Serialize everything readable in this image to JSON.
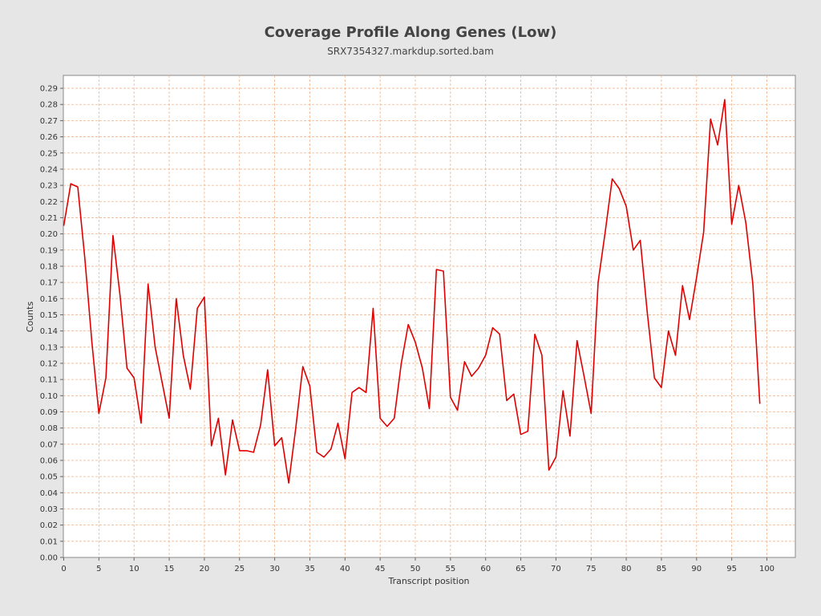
{
  "chart_data": {
    "type": "line",
    "title": "Coverage Profile Along Genes (Low)",
    "subtitle": "SRX7354327.markdup.sorted.bam",
    "xlabel": "Transcript position",
    "ylabel": "Counts",
    "xlim": [
      0,
      104
    ],
    "ylim": [
      0,
      0.298
    ],
    "x_ticks": [
      0,
      5,
      10,
      15,
      20,
      25,
      30,
      35,
      40,
      45,
      50,
      55,
      60,
      65,
      70,
      75,
      80,
      85,
      90,
      95,
      100
    ],
    "y_ticks": [
      "0.00",
      "0.01",
      "0.02",
      "0.03",
      "0.04",
      "0.05",
      "0.06",
      "0.07",
      "0.08",
      "0.09",
      "0.10",
      "0.11",
      "0.12",
      "0.13",
      "0.14",
      "0.15",
      "0.16",
      "0.17",
      "0.18",
      "0.19",
      "0.20",
      "0.21",
      "0.22",
      "0.23",
      "0.24",
      "0.25",
      "0.26",
      "0.27",
      "0.28",
      "0.29"
    ],
    "grid": true,
    "colors": {
      "line": "#e00000",
      "grid": "#f0b48c",
      "plot_bg": "#ffffff",
      "page_bg": "#e6e6e6"
    },
    "series": [
      {
        "x": [
          0,
          1,
          2,
          3,
          4,
          5,
          6,
          7,
          8,
          9,
          10,
          11,
          12,
          13,
          14,
          15,
          16,
          17,
          18,
          19,
          20,
          21,
          22,
          23,
          24,
          25,
          26,
          27,
          28,
          29,
          30,
          31,
          32,
          33,
          34,
          35,
          36,
          37,
          38,
          39,
          40,
          41,
          42,
          43,
          44,
          45,
          46,
          47,
          48,
          49,
          50,
          51,
          52,
          53,
          54,
          55,
          56,
          57,
          58,
          59,
          60,
          61,
          62,
          63,
          64,
          65,
          66,
          67,
          68,
          69,
          70,
          71,
          72,
          73,
          74,
          75,
          76,
          77,
          78,
          79,
          80,
          81,
          82,
          83,
          84,
          85,
          86,
          87,
          88,
          89,
          90,
          91,
          92,
          93,
          94,
          95,
          96,
          97,
          98,
          99
        ],
        "y": [
          0.205,
          0.231,
          0.229,
          0.185,
          0.133,
          0.089,
          0.111,
          0.199,
          0.162,
          0.117,
          0.111,
          0.083,
          0.169,
          0.13,
          0.108,
          0.086,
          0.16,
          0.125,
          0.104,
          0.154,
          0.161,
          0.069,
          0.086,
          0.051,
          0.085,
          0.066,
          0.066,
          0.065,
          0.082,
          0.116,
          0.069,
          0.074,
          0.046,
          0.08,
          0.118,
          0.106,
          0.065,
          0.062,
          0.067,
          0.083,
          0.061,
          0.102,
          0.105,
          0.102,
          0.154,
          0.086,
          0.081,
          0.086,
          0.12,
          0.144,
          0.133,
          0.117,
          0.092,
          0.178,
          0.177,
          0.099,
          0.091,
          0.121,
          0.112,
          0.117,
          0.125,
          0.142,
          0.138,
          0.097,
          0.101,
          0.076,
          0.078,
          0.138,
          0.125,
          0.054,
          0.062,
          0.103,
          0.075,
          0.134,
          0.112,
          0.089,
          0.17,
          0.201,
          0.234,
          0.228,
          0.217,
          0.19,
          0.196,
          0.151,
          0.111,
          0.105,
          0.14,
          0.125,
          0.168,
          0.147,
          0.173,
          0.201,
          0.271,
          0.255,
          0.283,
          0.206,
          0.23,
          0.207,
          0.169,
          0.095
        ]
      }
    ]
  }
}
